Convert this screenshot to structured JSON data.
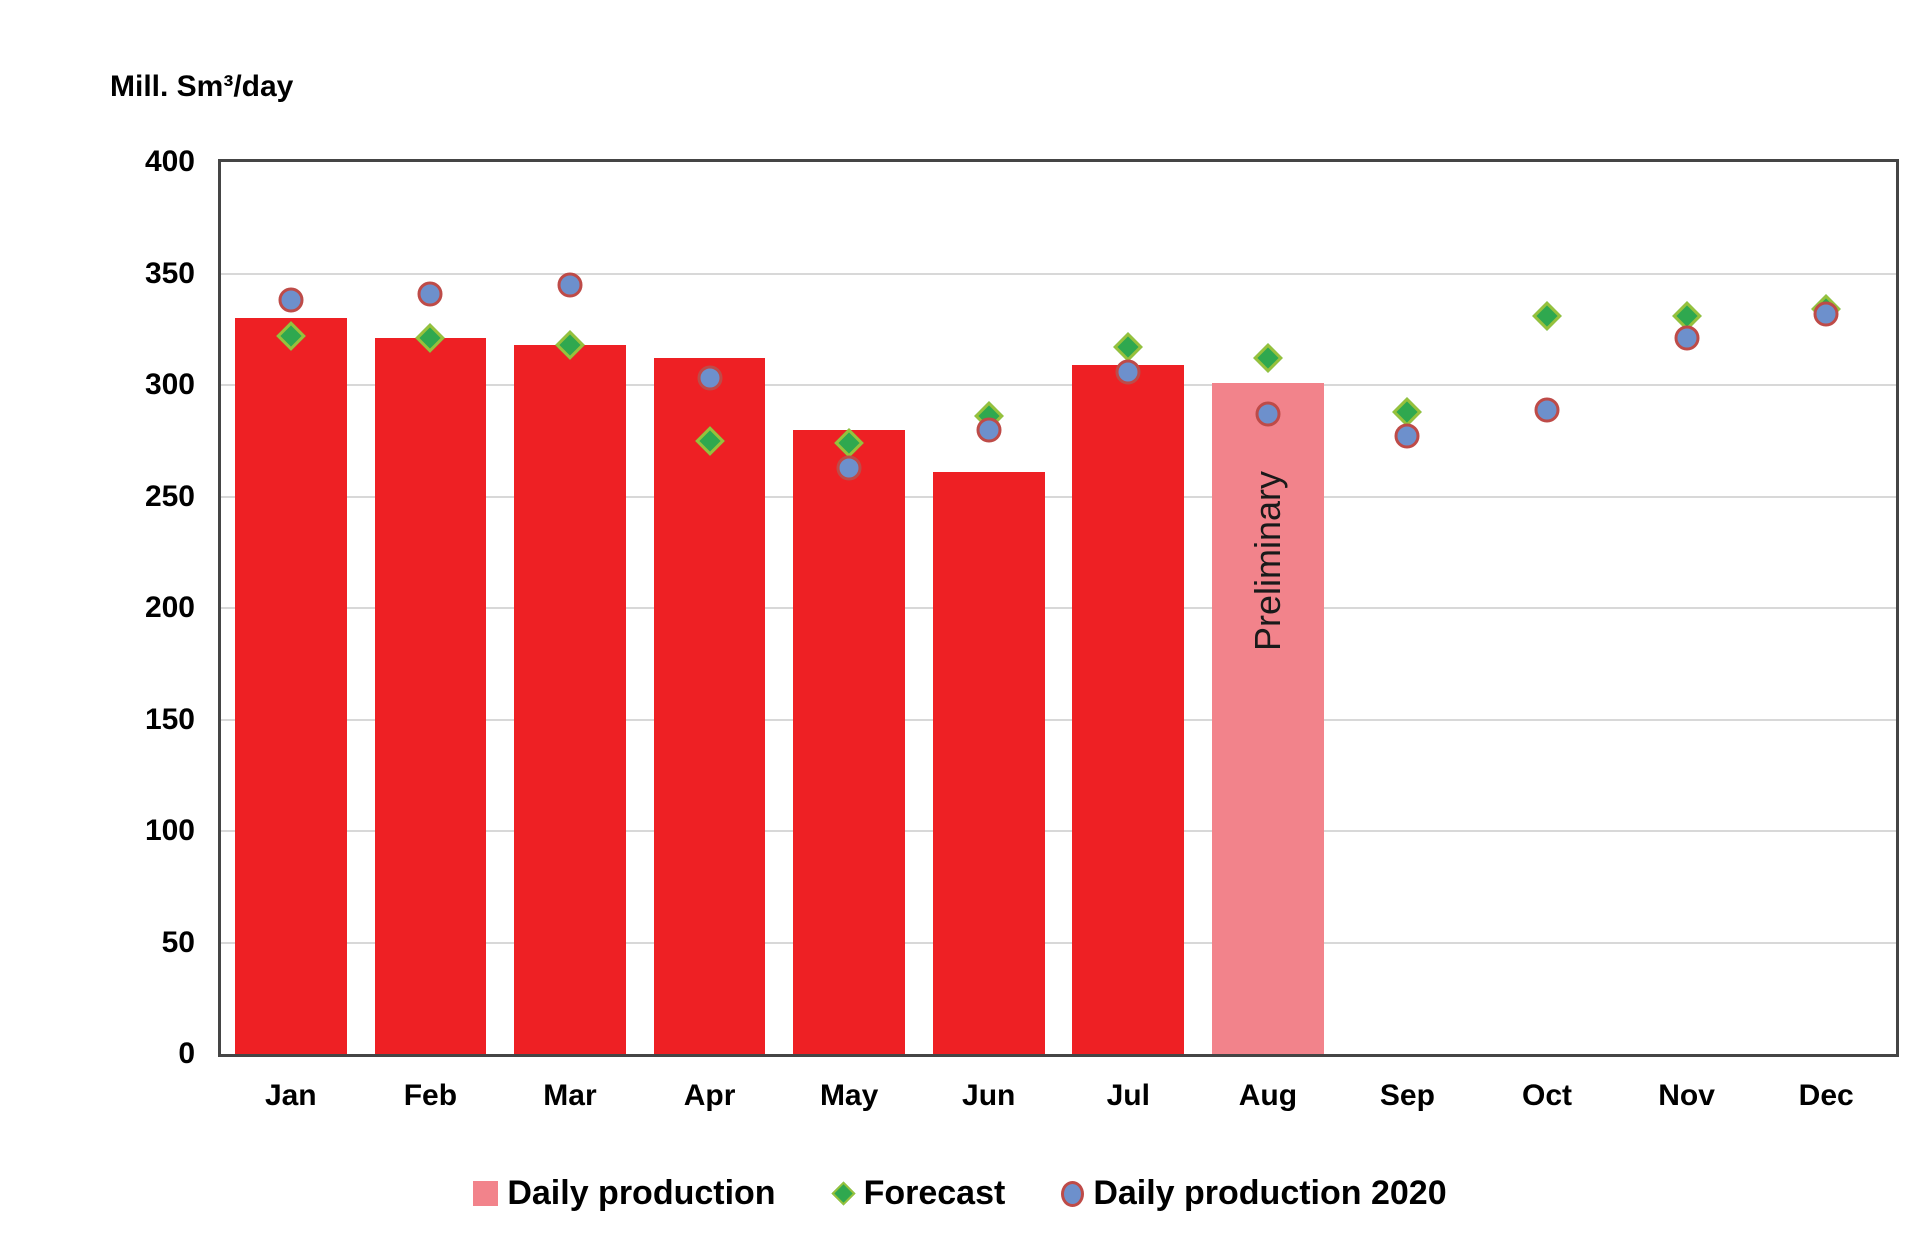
{
  "title": "Mill. Sm³/day",
  "colors": {
    "bar_red": "#ee2024",
    "bar_preliminary_pink": "#f2838b",
    "forecast_green": "#2fa84f",
    "forecast_border_green": "#97c13c",
    "production2020_blue": "#6d90cc",
    "production2020_border_red": "#be4b48"
  },
  "legend": [
    {
      "label": "Daily production",
      "marker": "square-icon"
    },
    {
      "label": "Forecast",
      "marker": "diamond-icon"
    },
    {
      "label": "Daily production 2020",
      "marker": "circle-icon"
    }
  ],
  "chart_data": {
    "type": "bar",
    "title": "Mill. Sm³/day",
    "ylabel": "Mill. Sm³/day",
    "xlabel": "",
    "ylim": [
      0,
      400
    ],
    "yticks": [
      0,
      50,
      100,
      150,
      200,
      250,
      300,
      350,
      400
    ],
    "grid": "horizontal",
    "legend_position": "bottom-center",
    "categories": [
      "Jan",
      "Feb",
      "Mar",
      "Apr",
      "May",
      "Jun",
      "Jul",
      "Aug",
      "Sep",
      "Oct",
      "Nov",
      "Dec"
    ],
    "series": [
      {
        "name": "Daily production",
        "type": "bar",
        "values": [
          330,
          321,
          318,
          312,
          280,
          261,
          309,
          301,
          null,
          null,
          null,
          null
        ],
        "preliminary_month": "Aug"
      },
      {
        "name": "Forecast",
        "type": "scatter",
        "marker": "diamond",
        "values": [
          322,
          321,
          318,
          275,
          274,
          286,
          317,
          312,
          288,
          331,
          331,
          334
        ]
      },
      {
        "name": "Daily production 2020",
        "type": "scatter",
        "marker": "circle",
        "values": [
          338,
          341,
          345,
          303,
          263,
          280,
          306,
          287,
          277,
          289,
          321,
          332
        ]
      }
    ],
    "annotations": [
      {
        "text": "Preliminary",
        "month": "Aug",
        "rotation": -90
      }
    ]
  }
}
